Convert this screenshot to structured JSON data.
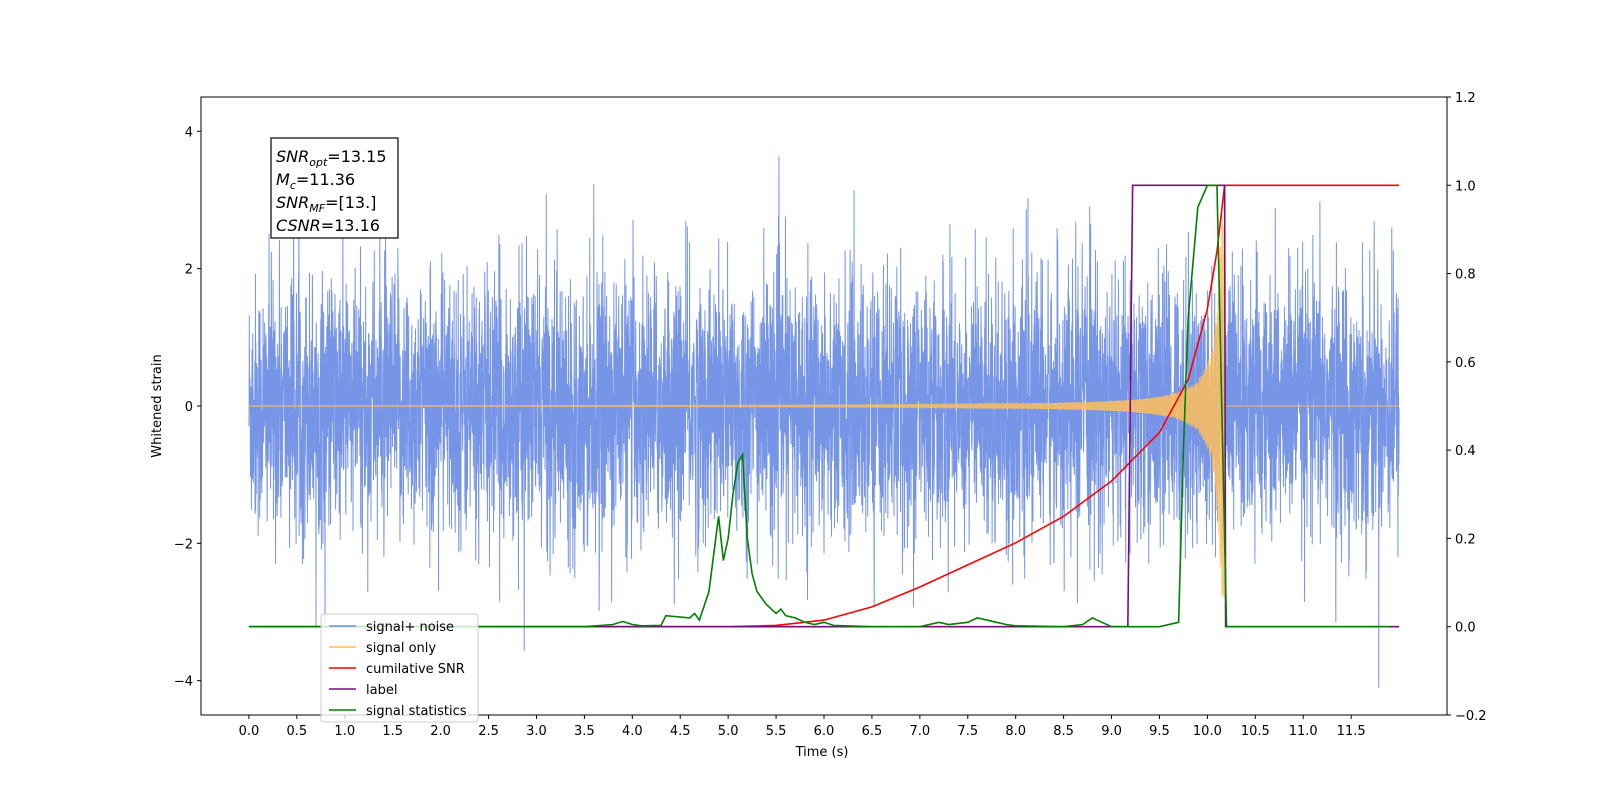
{
  "chart_data": {
    "type": "line",
    "xlabel": "Time (s)",
    "ylabel": "Whitened strain",
    "xlim": [
      -0.5,
      12.5
    ],
    "ylim": [
      -4.5,
      4.5
    ],
    "y2lim": [
      -0.2,
      1.2
    ],
    "x_ticks": [
      "0.0",
      "0.5",
      "1.0",
      "1.5",
      "2.0",
      "2.5",
      "3.0",
      "3.5",
      "4.0",
      "4.5",
      "5.0",
      "5.5",
      "6.0",
      "6.5",
      "7.0",
      "7.5",
      "8.0",
      "8.5",
      "9.0",
      "9.5",
      "10.0",
      "10.5",
      "11.0",
      "11.5"
    ],
    "y_ticks": [
      "4",
      "2",
      "0",
      "−2",
      "−4"
    ],
    "y_tick_values": [
      4,
      2,
      0,
      -2,
      -4
    ],
    "y2_ticks": [
      "1.2",
      "1.0",
      "0.8",
      "0.6",
      "0.4",
      "0.2",
      "0.0",
      "−0.2"
    ],
    "y2_tick_values": [
      1.2,
      1.0,
      0.8,
      0.6,
      0.4,
      0.2,
      0.0,
      -0.2
    ],
    "annotation": [
      {
        "main": "SNR",
        "sub": "opt",
        "rest": "=13.15"
      },
      {
        "main": "M",
        "sub": "c",
        "rest": "=11.36"
      },
      {
        "main": "SNR",
        "sub": "MF",
        "rest": "=[13.]"
      },
      {
        "main": "CSNR",
        "sub": "",
        "rest": "=13.16"
      }
    ],
    "legend_position": "lower-left",
    "series": [
      {
        "name": "signal+ noise",
        "axis": "left",
        "color": "#6f8fe6",
        "description": "noisy whitened strain, roughly ±2.5 with spikes to ±4, x from 0.0 to 12.0"
      },
      {
        "name": "signal only",
        "axis": "left",
        "color": "#ffbe5c",
        "description": "chirp, envelope growing from ~0.01 at x=6 to ~2.8 at x=10.18, zero after"
      },
      {
        "name": "cumilative SNR",
        "axis": "right",
        "color": "#ff0000",
        "x": [
          0,
          5.0,
          5.5,
          6.0,
          6.5,
          7.0,
          7.5,
          8.0,
          8.5,
          9.0,
          9.5,
          9.8,
          10.0,
          10.1,
          10.18,
          12.0
        ],
        "y": [
          0,
          0,
          0.003,
          0.015,
          0.045,
          0.09,
          0.14,
          0.19,
          0.25,
          0.33,
          0.44,
          0.56,
          0.72,
          0.85,
          1.0,
          1.0
        ]
      },
      {
        "name": "label",
        "axis": "right",
        "color": "#7b0d7b",
        "x": [
          0,
          9.17,
          9.22,
          10.18,
          10.19,
          12.0
        ],
        "y": [
          0,
          0,
          1.0,
          1.0,
          0,
          0
        ]
      },
      {
        "name": "signal statistics",
        "axis": "right",
        "color": "#008000",
        "x": [
          0,
          0.1,
          3.5,
          3.8,
          3.9,
          4.0,
          4.1,
          4.3,
          4.35,
          4.6,
          4.65,
          4.7,
          4.8,
          4.9,
          4.95,
          5.0,
          5.05,
          5.1,
          5.15,
          5.2,
          5.25,
          5.3,
          5.4,
          5.5,
          5.55,
          5.6,
          5.7,
          5.8,
          5.9,
          6.0,
          6.1,
          6.5,
          7.0,
          7.2,
          7.3,
          7.5,
          7.6,
          7.7,
          7.8,
          7.9,
          8.0,
          8.5,
          8.7,
          8.8,
          8.9,
          9.0,
          9.2,
          9.5,
          9.7,
          9.75,
          9.8,
          9.9,
          10.0,
          10.05,
          10.1,
          10.15,
          10.2,
          10.25,
          11.0,
          11.9
        ],
        "y": [
          0,
          0,
          0,
          0.005,
          0.012,
          0.005,
          0.002,
          0.003,
          0.025,
          0.02,
          0.03,
          0.015,
          0.08,
          0.25,
          0.15,
          0.2,
          0.3,
          0.37,
          0.39,
          0.2,
          0.12,
          0.08,
          0.05,
          0.03,
          0.04,
          0.025,
          0.02,
          0.01,
          0.005,
          0.01,
          0.003,
          0.0,
          0.0,
          0.01,
          0.005,
          0.01,
          0.02,
          0.015,
          0.01,
          0.005,
          0.002,
          0.0,
          0.005,
          0.02,
          0.01,
          0.0,
          0.0,
          0.0,
          0.01,
          0.4,
          0.7,
          0.95,
          1.0,
          1.0,
          1.0,
          0.5,
          0.0,
          0.0,
          0.0,
          0.0
        ]
      }
    ]
  }
}
